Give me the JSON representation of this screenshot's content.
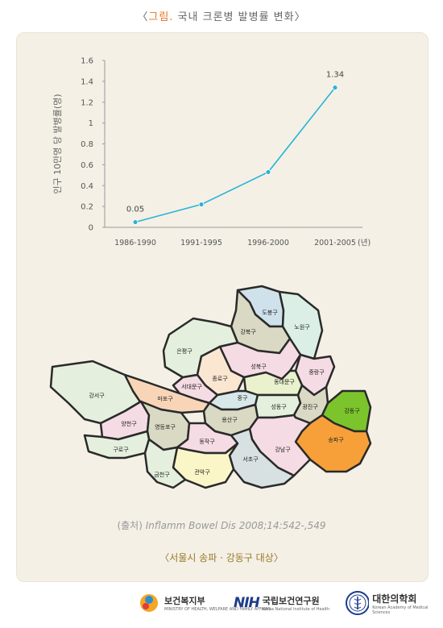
{
  "header": {
    "bracket_open": "〈",
    "label": "그림.",
    "title": " 국내 크론병 발병률 변화",
    "bracket_close": "〉"
  },
  "chart_data": {
    "type": "line",
    "categories": [
      "1986-1990",
      "1991-1995",
      "1996-2000",
      "2001-2005"
    ],
    "values": [
      0.05,
      0.22,
      0.53,
      1.34
    ],
    "data_labels": [
      "0.05",
      "",
      "",
      "1.34"
    ],
    "ylabel": "인구 10만명 당 발병률(명)",
    "xunit": "(년)",
    "ylim": [
      0,
      1.6
    ],
    "yticks": [
      "0",
      "0.2",
      "0.4",
      "0.6",
      "0.8",
      "1",
      "1.2",
      "1.4",
      "1.6"
    ],
    "grid": false,
    "line_color": "#2bb3d6"
  },
  "map": {
    "districts": [
      {
        "name": "도봉구",
        "color": "#cfe2ec"
      },
      {
        "name": "노원구",
        "color": "#dcefe6"
      },
      {
        "name": "강북구",
        "color": "#d9d9c4"
      },
      {
        "name": "은평구",
        "color": "#e4f0dd"
      },
      {
        "name": "성북구",
        "color": "#f5dbe3"
      },
      {
        "name": "중랑구",
        "color": "#f5dbe3"
      },
      {
        "name": "종로구",
        "color": "#fbe6d2"
      },
      {
        "name": "서대문구",
        "color": "#f5dbe3"
      },
      {
        "name": "동대문구",
        "color": "#e9f2cd"
      },
      {
        "name": "강서구",
        "color": "#e4f0dd"
      },
      {
        "name": "마포구",
        "color": "#f9d5b8"
      },
      {
        "name": "중구",
        "color": "#d8e8e9"
      },
      {
        "name": "성동구",
        "color": "#e4f0dd"
      },
      {
        "name": "광진구",
        "color": "#d9d9c4"
      },
      {
        "name": "강동구",
        "color": "#7cc42c"
      },
      {
        "name": "양천구",
        "color": "#f5dbe3"
      },
      {
        "name": "영등포구",
        "color": "#d9d9c4"
      },
      {
        "name": "용산구",
        "color": "#d9d9c4"
      },
      {
        "name": "동작구",
        "color": "#f5dbe3"
      },
      {
        "name": "구로구",
        "color": "#e4f0dd"
      },
      {
        "name": "송파구",
        "color": "#f7a03a"
      },
      {
        "name": "강남구",
        "color": "#f5dbe3"
      },
      {
        "name": "서초구",
        "color": "#d8e1e2"
      },
      {
        "name": "관악구",
        "color": "#fbf6c8"
      },
      {
        "name": "금천구",
        "color": "#e4f0dd"
      }
    ]
  },
  "source": {
    "prefix": "(출처) ",
    "citation": "Inflamm Bowel Dis 2008;14:542-,549"
  },
  "caption": "〈서울시 송파 · 강동구 대상〉",
  "logos": {
    "mohw": {
      "name": "보건복지부",
      "sub": "MINISTRY OF HEALTH, WELFARE AND FAMILY AFFAIRS",
      "icon": "mohw-logo-icon"
    },
    "nih": {
      "mark": "NIH",
      "name": "국립보건연구원",
      "sub": "Korea National Institute of Health",
      "icon": "nih-logo-icon"
    },
    "namok": {
      "name": "대한의학회",
      "sub": "Korean Academy of Medical Sciences",
      "icon": "caduceus-icon"
    }
  }
}
